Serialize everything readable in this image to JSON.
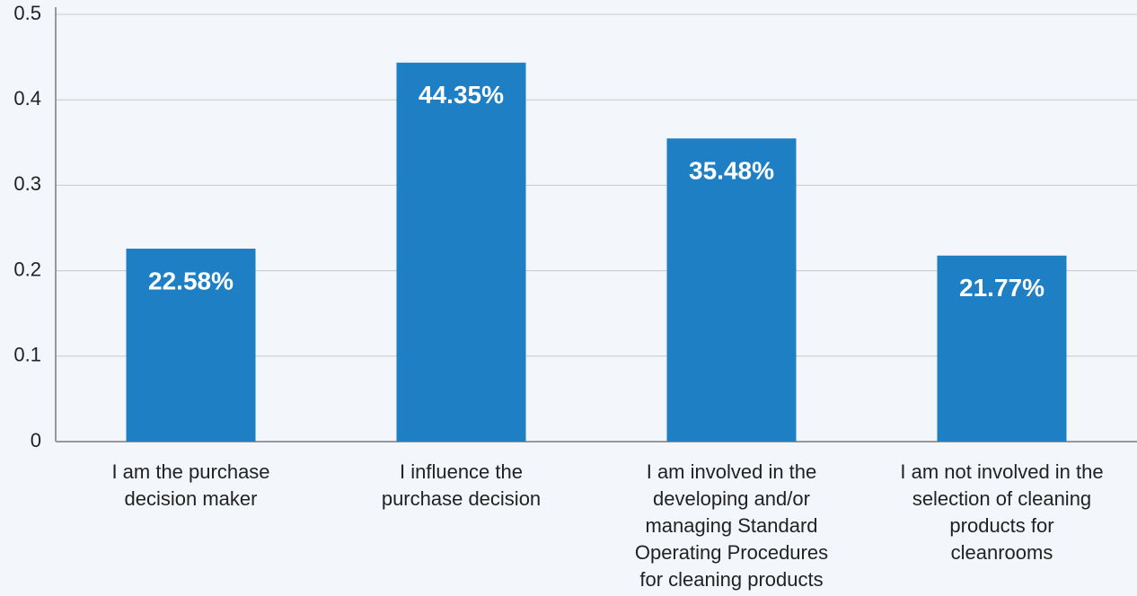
{
  "chart_data": {
    "type": "bar",
    "categories": [
      "I am the purchase decision maker",
      "I influence the purchase decision",
      "I am involved in the developing and/or managing Standard Operating Procedures for cleaning products",
      "I am not involved in the selection of cleaning products for cleanrooms"
    ],
    "values": [
      0.2258,
      0.4435,
      0.3548,
      0.2177
    ],
    "value_labels": [
      "22.58%",
      "44.35%",
      "35.48%",
      "21.77%"
    ],
    "color": "#1f7fc4",
    "ylim": [
      0,
      0.5
    ],
    "yticks": [
      0,
      0.1,
      0.2,
      0.3,
      0.4,
      0.5
    ],
    "grid": true
  }
}
